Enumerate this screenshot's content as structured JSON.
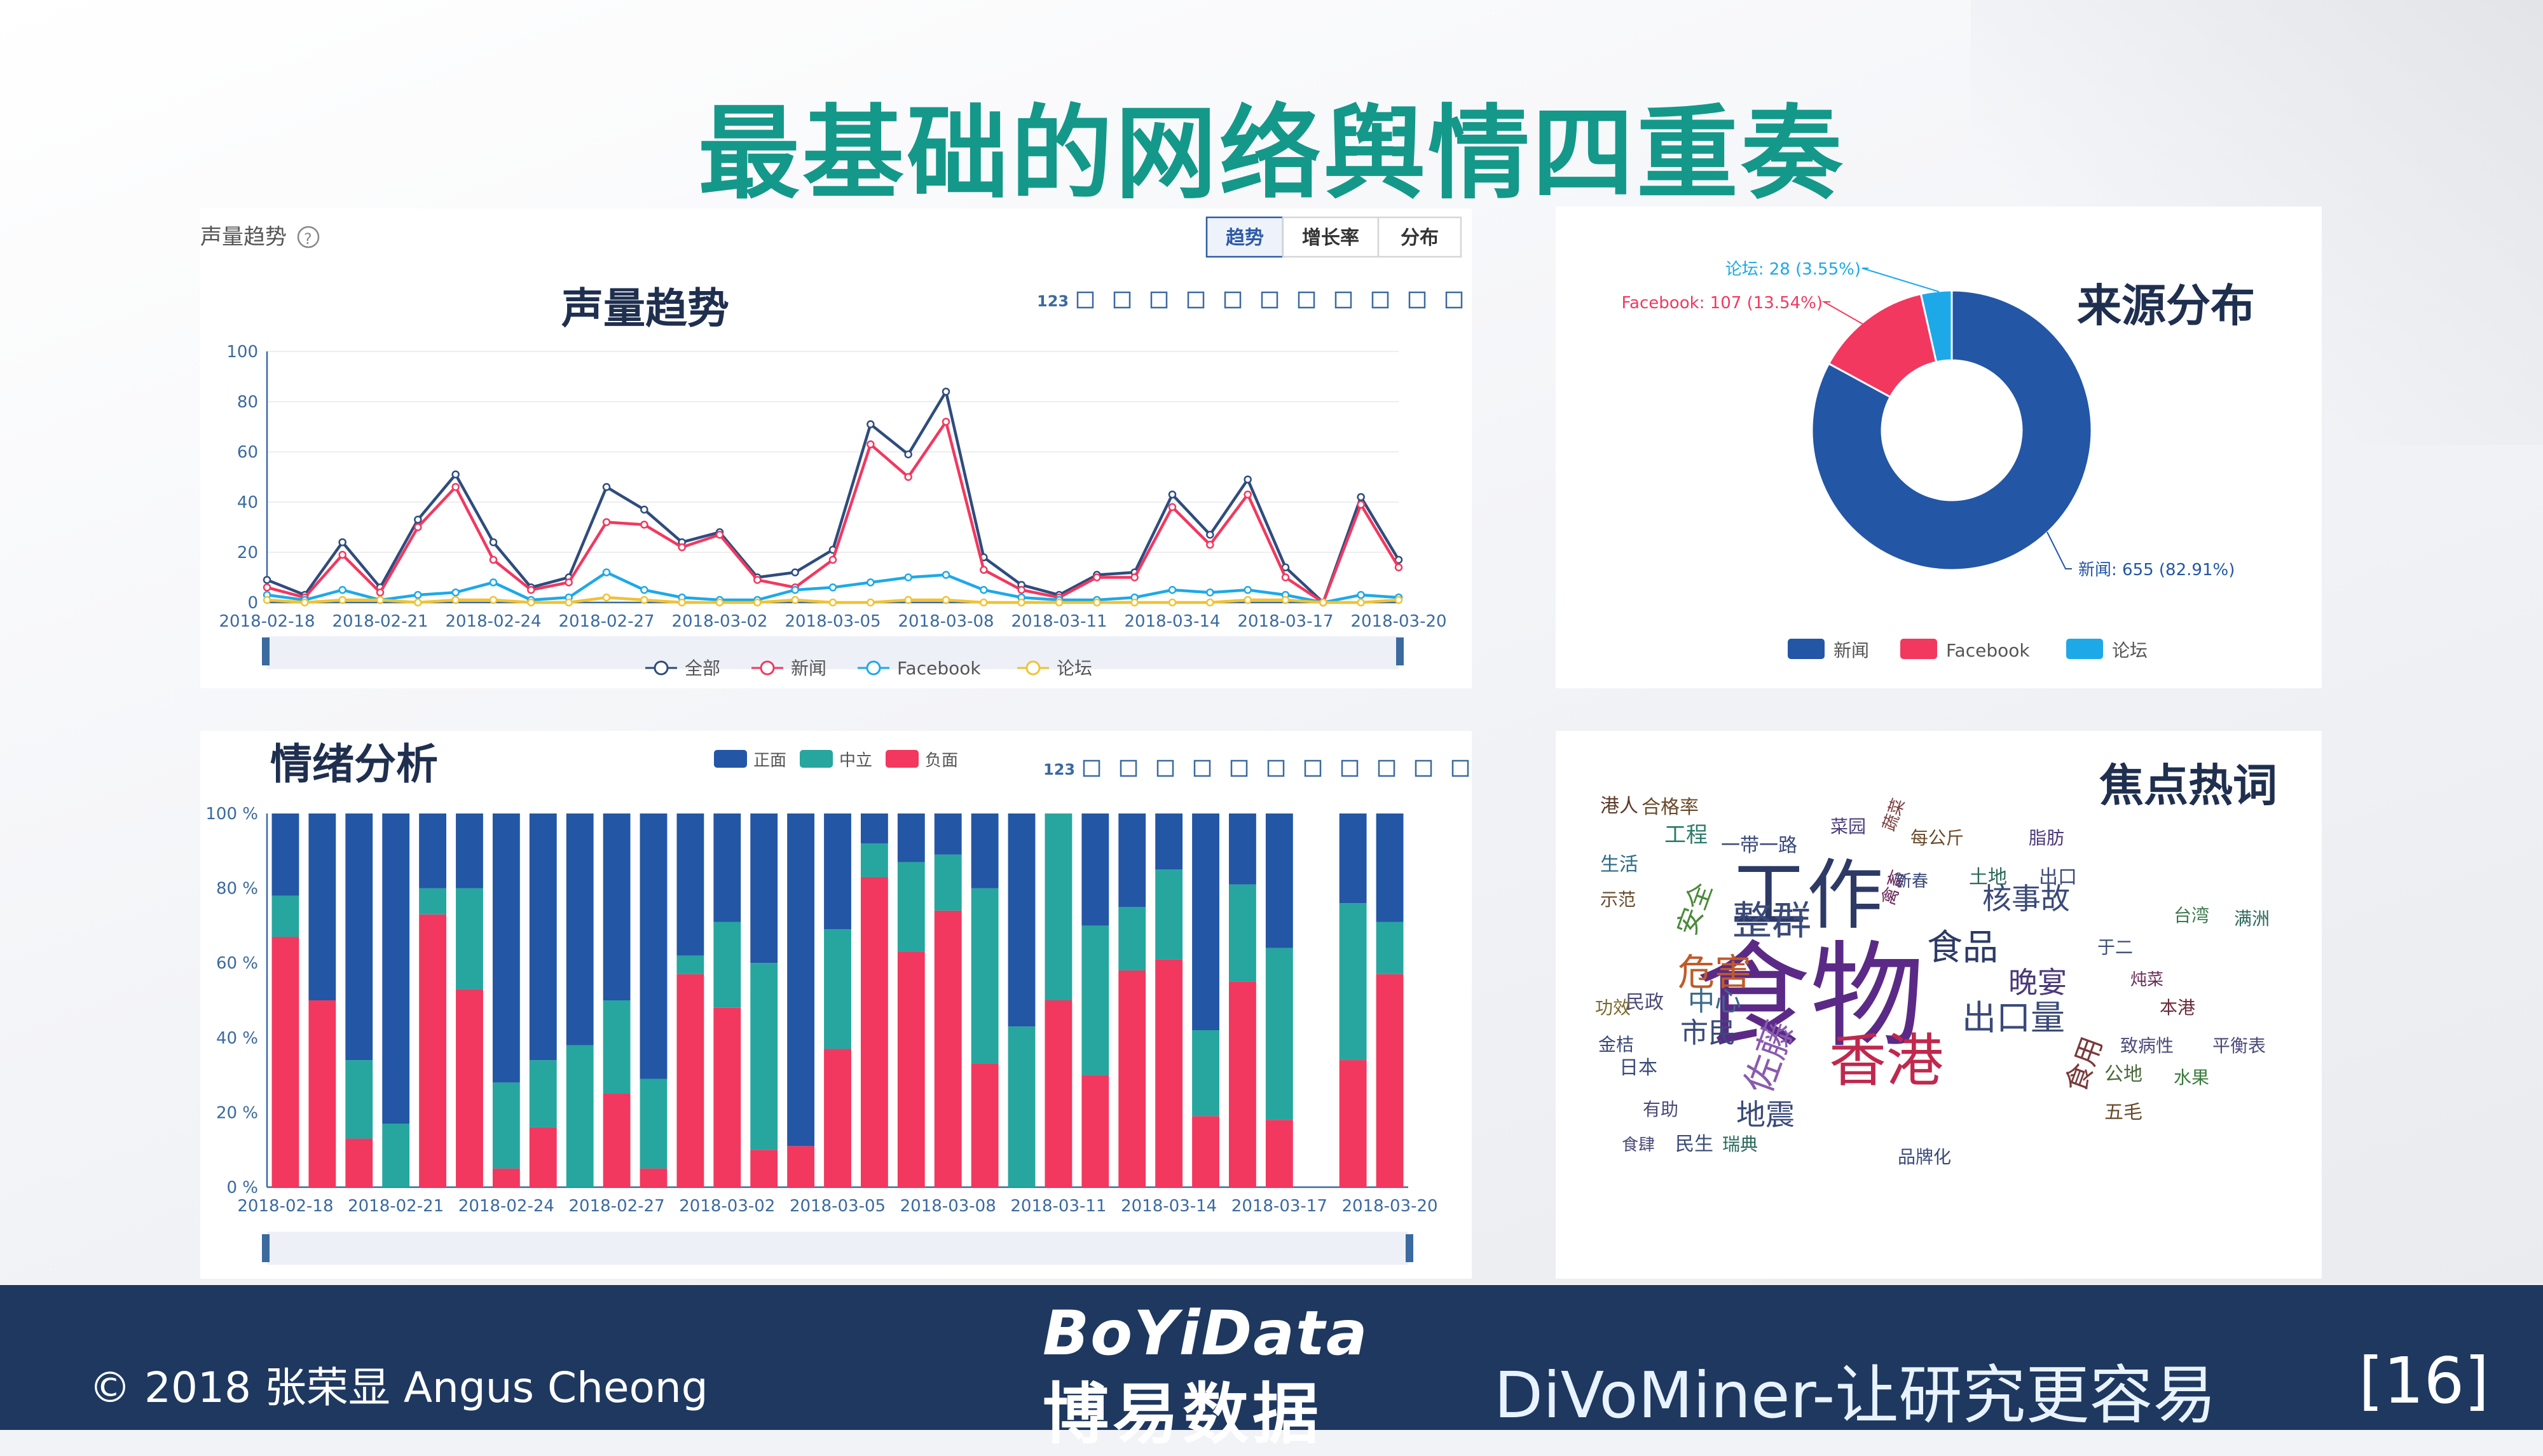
{
  "slide": {
    "title": "最基础的网络舆情四重奏",
    "copyright": "© 2018 张荣显 Angus Cheong",
    "brand_en": "BoYiData",
    "brand_cn": "博易数据",
    "tagline": "DiVoMiner-让研究更容易",
    "page_number": "[16]"
  },
  "colors": {
    "accent": "#14988a",
    "footer": "#1e3860",
    "blue": "#2356a5",
    "red": "#f2385f",
    "teal": "#26a69f",
    "cyan": "#1da9e8",
    "yellow": "#f1c232"
  },
  "volume_panel": {
    "header": "声量趋势",
    "help_icon": "?",
    "tabs": [
      "趋势",
      "增长率",
      "分布"
    ],
    "active_tab": 0,
    "toolbar_icons": [
      "123",
      "doc-icon",
      "marker-icon",
      "cross-icon",
      "crop-icon",
      "crop-back-icon",
      "line-chart-icon",
      "bar-chart-icon",
      "stack-icon",
      "tile-icon",
      "refresh-icon",
      "download-icon"
    ]
  },
  "emotion_panel": {
    "toolbar_icons": [
      "123",
      "doc-icon",
      "marker-icon",
      "cross-icon",
      "crop-icon",
      "crop-back-icon",
      "line-chart-icon",
      "bar-chart-icon",
      "stack-icon",
      "tile-icon",
      "refresh-icon",
      "download-icon"
    ]
  },
  "chart_data": [
    {
      "type": "line",
      "title": "声量趋势",
      "x": [
        "2018-02-18",
        "2018-02-19",
        "2018-02-20",
        "2018-02-21",
        "2018-02-22",
        "2018-02-23",
        "2018-02-24",
        "2018-02-25",
        "2018-02-26",
        "2018-02-27",
        "2018-02-28",
        "2018-03-01",
        "2018-03-02",
        "2018-03-03",
        "2018-03-04",
        "2018-03-05",
        "2018-03-06",
        "2018-03-07",
        "2018-03-08",
        "2018-03-09",
        "2018-03-10",
        "2018-03-11",
        "2018-03-12",
        "2018-03-13",
        "2018-03-14",
        "2018-03-15",
        "2018-03-16",
        "2018-03-17",
        "2018-03-18",
        "2018-03-19",
        "2018-03-20"
      ],
      "xticks": [
        "2018-02-18",
        "2018-02-21",
        "2018-02-24",
        "2018-02-27",
        "2018-03-02",
        "2018-03-05",
        "2018-03-08",
        "2018-03-11",
        "2018-03-14",
        "2018-03-17",
        "2018-03-20"
      ],
      "ylim": [
        0,
        100
      ],
      "yticks": [
        0,
        20,
        40,
        60,
        80,
        100
      ],
      "series": [
        {
          "name": "全部",
          "color": "#2e4c7e",
          "values": [
            9,
            3,
            24,
            6,
            33,
            51,
            24,
            6,
            10,
            46,
            37,
            24,
            28,
            10,
            12,
            21,
            71,
            59,
            84,
            18,
            7,
            3,
            11,
            12,
            43,
            27,
            49,
            14,
            0,
            42,
            17
          ]
        },
        {
          "name": "新闻",
          "color": "#f2385f",
          "values": [
            6,
            2,
            19,
            4,
            30,
            46,
            17,
            5,
            8,
            32,
            31,
            22,
            27,
            9,
            6,
            17,
            63,
            50,
            72,
            13,
            5,
            2,
            10,
            10,
            38,
            23,
            43,
            10,
            0,
            39,
            14
          ]
        },
        {
          "name": "Facebook",
          "color": "#1da9e8",
          "values": [
            3,
            1,
            5,
            1,
            3,
            4,
            8,
            1,
            2,
            12,
            5,
            2,
            1,
            1,
            5,
            6,
            8,
            10,
            11,
            5,
            2,
            1,
            1,
            2,
            5,
            4,
            5,
            3,
            0,
            3,
            2
          ]
        },
        {
          "name": "论坛",
          "color": "#f1c232",
          "values": [
            1,
            0,
            1,
            1,
            0,
            1,
            1,
            0,
            0,
            2,
            1,
            0,
            0,
            0,
            1,
            0,
            0,
            1,
            1,
            0,
            0,
            0,
            0,
            0,
            0,
            0,
            1,
            1,
            0,
            0,
            1
          ]
        }
      ]
    },
    {
      "type": "pie",
      "title": "来源分布",
      "slices": [
        {
          "name": "新闻",
          "value": 655,
          "label": "新闻: 655 (82.91%)",
          "color": "#2356a5"
        },
        {
          "name": "Facebook",
          "value": 107,
          "label": "Facebook: 107 (13.54%)",
          "color": "#f2385f"
        },
        {
          "name": "论坛",
          "value": 28,
          "label": "论坛: 28 (3.55%)",
          "color": "#1da9e8"
        }
      ]
    },
    {
      "type": "bar",
      "stacked": true,
      "title": "情绪分析",
      "x": [
        "2018-02-18",
        "2018-02-19",
        "2018-02-20",
        "2018-02-21",
        "2018-02-22",
        "2018-02-23",
        "2018-02-24",
        "2018-02-25",
        "2018-02-26",
        "2018-02-27",
        "2018-02-28",
        "2018-03-01",
        "2018-03-02",
        "2018-03-03",
        "2018-03-04",
        "2018-03-05",
        "2018-03-06",
        "2018-03-07",
        "2018-03-08",
        "2018-03-09",
        "2018-03-10",
        "2018-03-11",
        "2018-03-12",
        "2018-03-13",
        "2018-03-14",
        "2018-03-15",
        "2018-03-16",
        "2018-03-17",
        "2018-03-18",
        "2018-03-19",
        "2018-03-20"
      ],
      "xticks": [
        "2018-02-18",
        "2018-02-21",
        "2018-02-24",
        "2018-02-27",
        "2018-03-02",
        "2018-03-05",
        "2018-03-08",
        "2018-03-11",
        "2018-03-14",
        "2018-03-17",
        "2018-03-20"
      ],
      "yticks": [
        "0 %",
        "20 %",
        "40 %",
        "60 %",
        "80 %",
        "100 %"
      ],
      "series": [
        {
          "name": "负面",
          "color": "#f2385f",
          "values": [
            67,
            50,
            13,
            0,
            73,
            53,
            5,
            16,
            0,
            25,
            5,
            57,
            48,
            10,
            11,
            37,
            83,
            63,
            74,
            33,
            0,
            50,
            30,
            58,
            61,
            19,
            55,
            18,
            0,
            34,
            57
          ]
        },
        {
          "name": "中立",
          "color": "#26a69f",
          "values": [
            11,
            0,
            21,
            17,
            7,
            27,
            23,
            18,
            38,
            25,
            24,
            5,
            23,
            50,
            0,
            32,
            9,
            24,
            15,
            47,
            43,
            50,
            40,
            17,
            24,
            23,
            26,
            46,
            0,
            42,
            14
          ]
        },
        {
          "name": "正面",
          "color": "#2356a5",
          "values": [
            22,
            50,
            66,
            83,
            20,
            20,
            72,
            66,
            62,
            50,
            71,
            38,
            29,
            40,
            89,
            31,
            8,
            13,
            11,
            20,
            57,
            0,
            30,
            25,
            15,
            58,
            19,
            36,
            0,
            24,
            29
          ]
        }
      ]
    }
  ],
  "wordcloud": {
    "title": "焦点热词",
    "words": [
      {
        "text": "食物",
        "color": "#5b2a86"
      },
      {
        "text": "工作",
        "color": "#2d3a66"
      },
      {
        "text": "香港",
        "color": "#c0284d"
      },
      {
        "text": "整群",
        "color": "#3a4a7a"
      },
      {
        "text": "危害",
        "color": "#c05a2a"
      },
      {
        "text": "佐藤",
        "color": "#8a5ab0"
      },
      {
        "text": "食品",
        "color": "#2d3a66"
      },
      {
        "text": "出口量",
        "color": "#3a4a7a"
      },
      {
        "text": "核事故",
        "color": "#3a4a7a"
      },
      {
        "text": "晚宴",
        "color": "#4a3a7a"
      },
      {
        "text": "市民",
        "color": "#3a4a7a"
      },
      {
        "text": "中心",
        "color": "#3a6a8a"
      },
      {
        "text": "地震",
        "color": "#3a4a7a"
      },
      {
        "text": "安全",
        "color": "#4a8a3a"
      },
      {
        "text": "合格率",
        "color": "#6a4a2a"
      },
      {
        "text": "工程",
        "color": "#2a7a6a"
      },
      {
        "text": "一带一路",
        "color": "#3a4a7a"
      },
      {
        "text": "每公斤",
        "color": "#6a4a2a"
      },
      {
        "text": "土地",
        "color": "#2a6a5a"
      },
      {
        "text": "出口",
        "color": "#3a4a7a"
      },
      {
        "text": "日本",
        "color": "#3a4a7a"
      },
      {
        "text": "民政",
        "color": "#4a4a7a"
      },
      {
        "text": "公地",
        "color": "#4a6a3a"
      },
      {
        "text": "五毛",
        "color": "#6a4a2a"
      },
      {
        "text": "食用",
        "color": "#7a3a3a"
      },
      {
        "text": "水果",
        "color": "#3a7a3a"
      },
      {
        "text": "致病性",
        "color": "#4a4a7a"
      },
      {
        "text": "平衡表",
        "color": "#4a4a7a"
      },
      {
        "text": "本港",
        "color": "#6a2a3a"
      },
      {
        "text": "于二",
        "color": "#3a4a7a"
      },
      {
        "text": "脂肪",
        "color": "#4a3a7a"
      },
      {
        "text": "港人",
        "color": "#5a3a2a"
      },
      {
        "text": "生活",
        "color": "#2a6a8a"
      },
      {
        "text": "功效",
        "color": "#7a6a2a"
      },
      {
        "text": "金桔",
        "color": "#3a4a7a"
      },
      {
        "text": "有助",
        "color": "#4a4a7a"
      },
      {
        "text": "食肆",
        "color": "#4a4a7a"
      },
      {
        "text": "民生",
        "color": "#3a4a7a"
      },
      {
        "text": "瑞典",
        "color": "#2a6a5a"
      },
      {
        "text": "品牌化",
        "color": "#3a4a7a"
      },
      {
        "text": "禽畜",
        "color": "#6a2a5a"
      },
      {
        "text": "菜园",
        "color": "#4a3a7a"
      },
      {
        "text": "台湾",
        "color": "#3a7a4a"
      },
      {
        "text": "满洲",
        "color": "#2a6a5a"
      },
      {
        "text": "示范",
        "color": "#6a4a2a"
      },
      {
        "text": "蔬菜",
        "color": "#7a3a3a"
      },
      {
        "text": "新春",
        "color": "#3a4a7a"
      },
      {
        "text": "炖菜",
        "color": "#6a2a5a"
      }
    ]
  }
}
